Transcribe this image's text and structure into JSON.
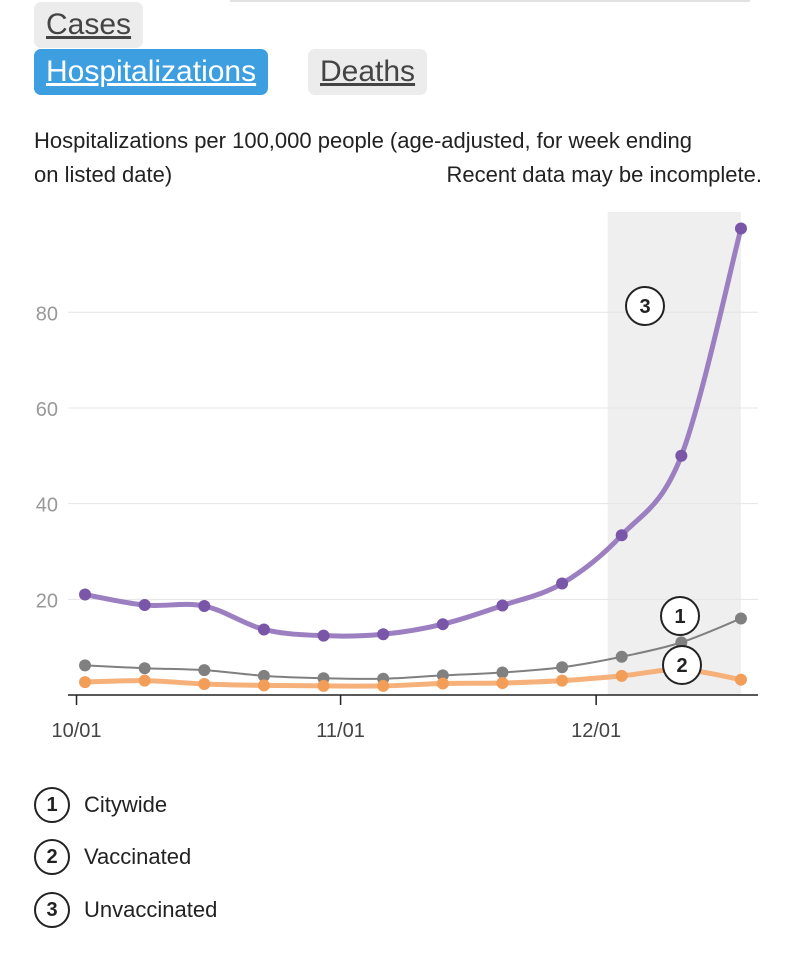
{
  "tabs": [
    {
      "label": "Cases",
      "active": false
    },
    {
      "label": "Hospitalizations",
      "active": true
    },
    {
      "label": "Deaths",
      "active": false
    }
  ],
  "description_line1": "Hospitalizations per 100,000 people (age-adjusted, for week ending",
  "description_line2": "on listed date)",
  "note": "Recent data may be incomplete.",
  "colors": {
    "active_tab": "#3d9fe0",
    "unvaccinated": "#9b7fc0",
    "unvaccinated_marker": "#7a56a8",
    "citywide": "#808080",
    "vaccinated": "#f6b07a",
    "vaccinated_marker": "#f29d58",
    "incomplete_band": "#efefef"
  },
  "chart_data": {
    "type": "line",
    "x": [
      "2021-10-02",
      "2021-10-09",
      "2021-10-16",
      "2021-10-23",
      "2021-10-30",
      "2021-11-06",
      "2021-11-13",
      "2021-11-20",
      "2021-11-27",
      "2021-12-04",
      "2021-12-11",
      "2021-12-18"
    ],
    "x_ticks": [
      {
        "date": "2021-10-01",
        "label": "10/01"
      },
      {
        "date": "2021-11-01",
        "label": "11/01"
      },
      {
        "date": "2021-12-01",
        "label": "12/01"
      }
    ],
    "y_ticks": [
      20,
      40,
      60,
      80
    ],
    "ylim": [
      0,
      102
    ],
    "incomplete_range": [
      "2021-12-04",
      "2021-12-18"
    ],
    "grid": true,
    "series": [
      {
        "name": "Citywide",
        "marker": "1",
        "values": [
          6.2,
          5.6,
          5.2,
          4.0,
          3.5,
          3.4,
          4.1,
          4.7,
          5.8,
          8.0,
          11.0,
          16.0
        ]
      },
      {
        "name": "Vaccinated",
        "marker": "2",
        "values": [
          2.7,
          3.0,
          2.3,
          2.0,
          1.9,
          1.9,
          2.4,
          2.5,
          3.0,
          4.0,
          5.3,
          3.2
        ]
      },
      {
        "name": "Unvaccinated",
        "marker": "3",
        "values": [
          21.0,
          18.8,
          18.6,
          13.7,
          12.4,
          12.7,
          14.8,
          18.7,
          23.3,
          33.4,
          50.0,
          97.5
        ]
      }
    ]
  }
}
